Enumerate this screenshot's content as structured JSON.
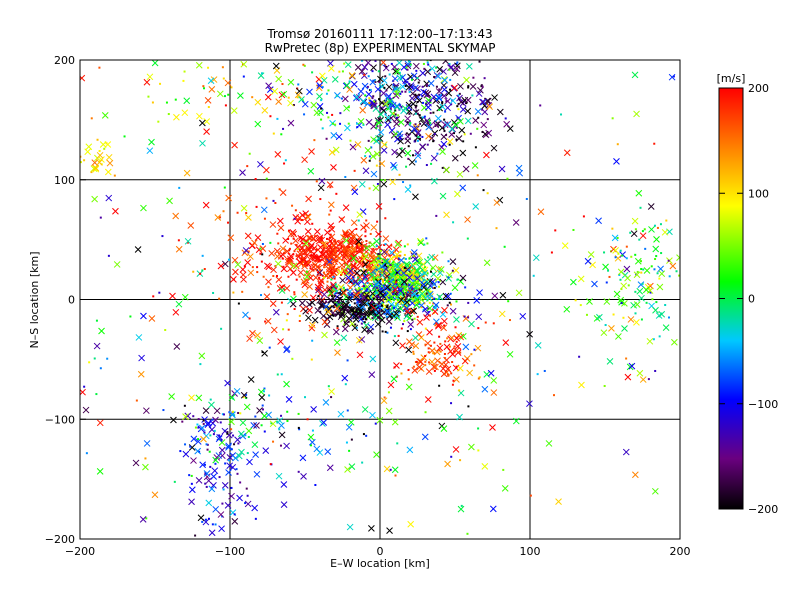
{
  "chart_data": {
    "type": "scatter",
    "title": "Tromsø 20160111 17:12:00–17:13:43",
    "subtitle": "RwPretec (8p) EXPERIMENTAL SKYMAP",
    "xlabel": "E–W location [km]",
    "ylabel": "N–S location [km]",
    "xlim": [
      -200,
      200
    ],
    "ylim": [
      -200,
      200
    ],
    "xticks": [
      "−200",
      "−100",
      "0",
      "100",
      "200"
    ],
    "yticks": [
      "−200",
      "−100",
      "0",
      "100",
      "200"
    ],
    "x_tick_values": [
      -200,
      -100,
      0,
      100,
      200
    ],
    "y_tick_values": [
      -200,
      -100,
      0,
      100,
      200
    ],
    "grid": true,
    "grid_values": [
      -100,
      0,
      100
    ],
    "colorbar": {
      "label": "[m/s]",
      "range": [
        -200,
        200
      ],
      "ticks": [
        "200",
        "100",
        "0",
        "−100",
        "−200"
      ],
      "tick_values": [
        200,
        100,
        0,
        -100,
        -200
      ],
      "colormap": "rainbow (black → purple → blue → cyan → green → yellow → red)"
    },
    "marker_styles": [
      "x",
      "dot"
    ],
    "clusters": [
      {
        "x": -28,
        "y": 35,
        "sx": 18,
        "sy": 13,
        "n": 420,
        "v": 185,
        "vs": 20
      },
      {
        "x": 12,
        "y": 18,
        "sx": 14,
        "sy": 12,
        "n": 330,
        "v": 60,
        "vs": 45
      },
      {
        "x": 5,
        "y": 5,
        "sx": 20,
        "sy": 14,
        "n": 420,
        "v": -40,
        "vs": 90
      },
      {
        "x": -20,
        "y": -8,
        "sx": 14,
        "sy": 8,
        "n": 150,
        "v": -190,
        "vs": 15
      },
      {
        "x": 30,
        "y": 155,
        "sx": 25,
        "sy": 22,
        "n": 240,
        "v": -170,
        "vs": 40
      },
      {
        "x": 15,
        "y": 180,
        "sx": 22,
        "sy": 14,
        "n": 140,
        "v": -100,
        "vs": 70
      },
      {
        "x": -5,
        "y": 150,
        "sx": 30,
        "sy": 30,
        "n": 140,
        "v": -20,
        "vs": 60
      },
      {
        "x": -105,
        "y": -140,
        "sx": 12,
        "sy": 30,
        "n": 110,
        "v": -110,
        "vs": 40
      },
      {
        "x": -80,
        "y": -105,
        "sx": 35,
        "sy": 20,
        "n": 110,
        "v": -60,
        "vs": 60
      },
      {
        "x": 40,
        "y": -45,
        "sx": 15,
        "sy": 15,
        "n": 110,
        "v": 175,
        "vs": 25
      },
      {
        "x": -65,
        "y": 45,
        "sx": 32,
        "sy": 35,
        "n": 150,
        "v": 185,
        "vs": 20
      },
      {
        "x": 170,
        "y": 20,
        "sx": 18,
        "sy": 25,
        "n": 130,
        "v": 20,
        "vs": 60
      },
      {
        "x": -190,
        "y": 115,
        "sx": 5,
        "sy": 8,
        "n": 25,
        "v": 90,
        "vs": 25
      },
      {
        "x": -95,
        "y": 175,
        "sx": 55,
        "sy": 20,
        "n": 90,
        "v": 100,
        "vs": 80
      },
      {
        "x": 0,
        "y": 0,
        "sx": 115,
        "sy": 115,
        "n": 520,
        "v": 0,
        "vs": 140
      }
    ]
  }
}
